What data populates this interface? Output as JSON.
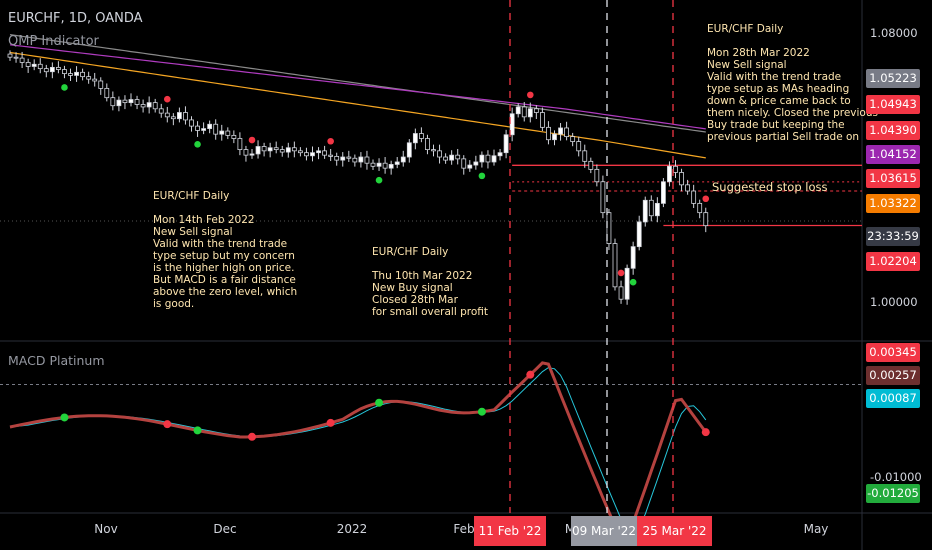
{
  "header": {
    "symbol": "EURCHF, 1D, OANDA",
    "indicator": "QMP Indicator",
    "macd_title": "MACD Platinum"
  },
  "annotations": {
    "note1": "EUR/CHF Daily\n\nMon 14th Feb 2022\nNew Sell signal\nValid with the trend trade\ntype setup but my concern\nis the higher high on price.\nBut MACD is a fair distance\nabove the zero level, which\nis good.",
    "note2": "EUR/CHF Daily\n\nThu 10th Mar 2022\nNew Buy signal\nClosed 28th Mar\nfor small overall profit",
    "note3": "EUR/CHF Daily\n\nMon 28th Mar 2022\nNew Sell signal\nValid with the trend trade\ntype setup as MAs heading\ndown & price came back to\nthem nicely. Closed the previous\nBuy trade but keeping the\nprevious partial Sell trade on",
    "stop_label": "Suggested stop loss"
  },
  "price_axis": {
    "ticks": [
      "1.08000",
      "1.00000"
    ],
    "tags": [
      {
        "value": "1.05223",
        "color": "#787b86"
      },
      {
        "value": "1.04943",
        "color": "#f23645"
      },
      {
        "value": "1.04390",
        "color": "#f23645"
      },
      {
        "value": "1.04152",
        "color": "#9c27b0"
      },
      {
        "value": "1.03615",
        "color": "#f23645"
      },
      {
        "value": "1.03322",
        "color": "#f57c00"
      },
      {
        "value": "23:33:59",
        "color": "#363a45"
      },
      {
        "value": "1.02204",
        "color": "#f23645"
      }
    ]
  },
  "macd_axis": {
    "tags": [
      {
        "value": "0.00345",
        "color": "#f23645"
      },
      {
        "value": "0.00257",
        "color": "#6d2f2f"
      },
      {
        "value": "0.00087",
        "color": "#00bcd4"
      },
      {
        "value": "-0.01205",
        "color": "#22ab3c"
      }
    ],
    "tick": "-0.01000"
  },
  "time_axis": {
    "labels": [
      "Nov",
      "Dec",
      "2022",
      "Feb",
      "M",
      "May"
    ],
    "highlights": [
      {
        "label": "11 Feb '22",
        "color": "#f23645"
      },
      {
        "label": "09 Mar '22",
        "color": "#787b86"
      },
      {
        "label": "25 Mar '22",
        "color": "#f23645"
      }
    ]
  },
  "chart_data": {
    "type": "candlestick",
    "title": "EURCHF, 1D, OANDA",
    "price_range": [
      0.985,
      1.095
    ],
    "macd_range": [
      -0.0135,
      0.0045
    ],
    "closes": [
      1.0765,
      1.0762,
      1.0748,
      1.0735,
      1.0742,
      1.0728,
      1.0718,
      1.0732,
      1.0725,
      1.0712,
      1.0706,
      1.0716,
      1.0702,
      1.0694,
      1.0688,
      1.0664,
      1.0634,
      1.0608,
      1.0626,
      1.0618,
      1.0628,
      1.0612,
      1.0604,
      1.0618,
      1.0598,
      1.0584,
      1.0572,
      1.0566,
      1.0586,
      1.0562,
      1.0542,
      1.0528,
      1.0534,
      1.0548,
      1.0516,
      1.0526,
      1.0512,
      1.0502,
      1.0466,
      1.0448,
      1.0452,
      1.0476,
      1.0462,
      1.0472,
      1.0466,
      1.0458,
      1.0472,
      1.0462,
      1.0456,
      1.0446,
      1.0456,
      1.0462,
      1.0448,
      1.0444,
      1.0432,
      1.0442,
      1.0438,
      1.0426,
      1.0442,
      1.0422,
      1.0412,
      1.0422,
      1.0406,
      1.0418,
      1.0426,
      1.0442,
      1.0488,
      1.0518,
      1.0502,
      1.0466,
      1.0462,
      1.0442,
      1.0432,
      1.0448,
      1.0436,
      1.0406,
      1.0416,
      1.0426,
      1.0448,
      1.0426,
      1.0446,
      1.0456,
      1.0514,
      1.0582,
      1.0604,
      1.0572,
      1.0598,
      1.0586,
      1.0538,
      1.0498,
      1.0516,
      1.0536,
      1.0508,
      1.0492,
      1.0462,
      1.0428,
      1.0402,
      1.0362,
      1.0262,
      1.0162,
      1.0022,
      0.9982,
      1.0082,
      1.0152,
      1.0232,
      1.0302,
      1.0252,
      1.0292,
      1.0362,
      1.0412,
      1.0392,
      1.0352,
      1.0332,
      1.0292,
      1.0262,
      1.022
    ],
    "markers": {
      "sell_days": [
        26,
        40,
        53,
        86,
        101,
        115
      ],
      "buy_days": [
        9,
        31,
        61,
        78,
        103
      ]
    }
  }
}
